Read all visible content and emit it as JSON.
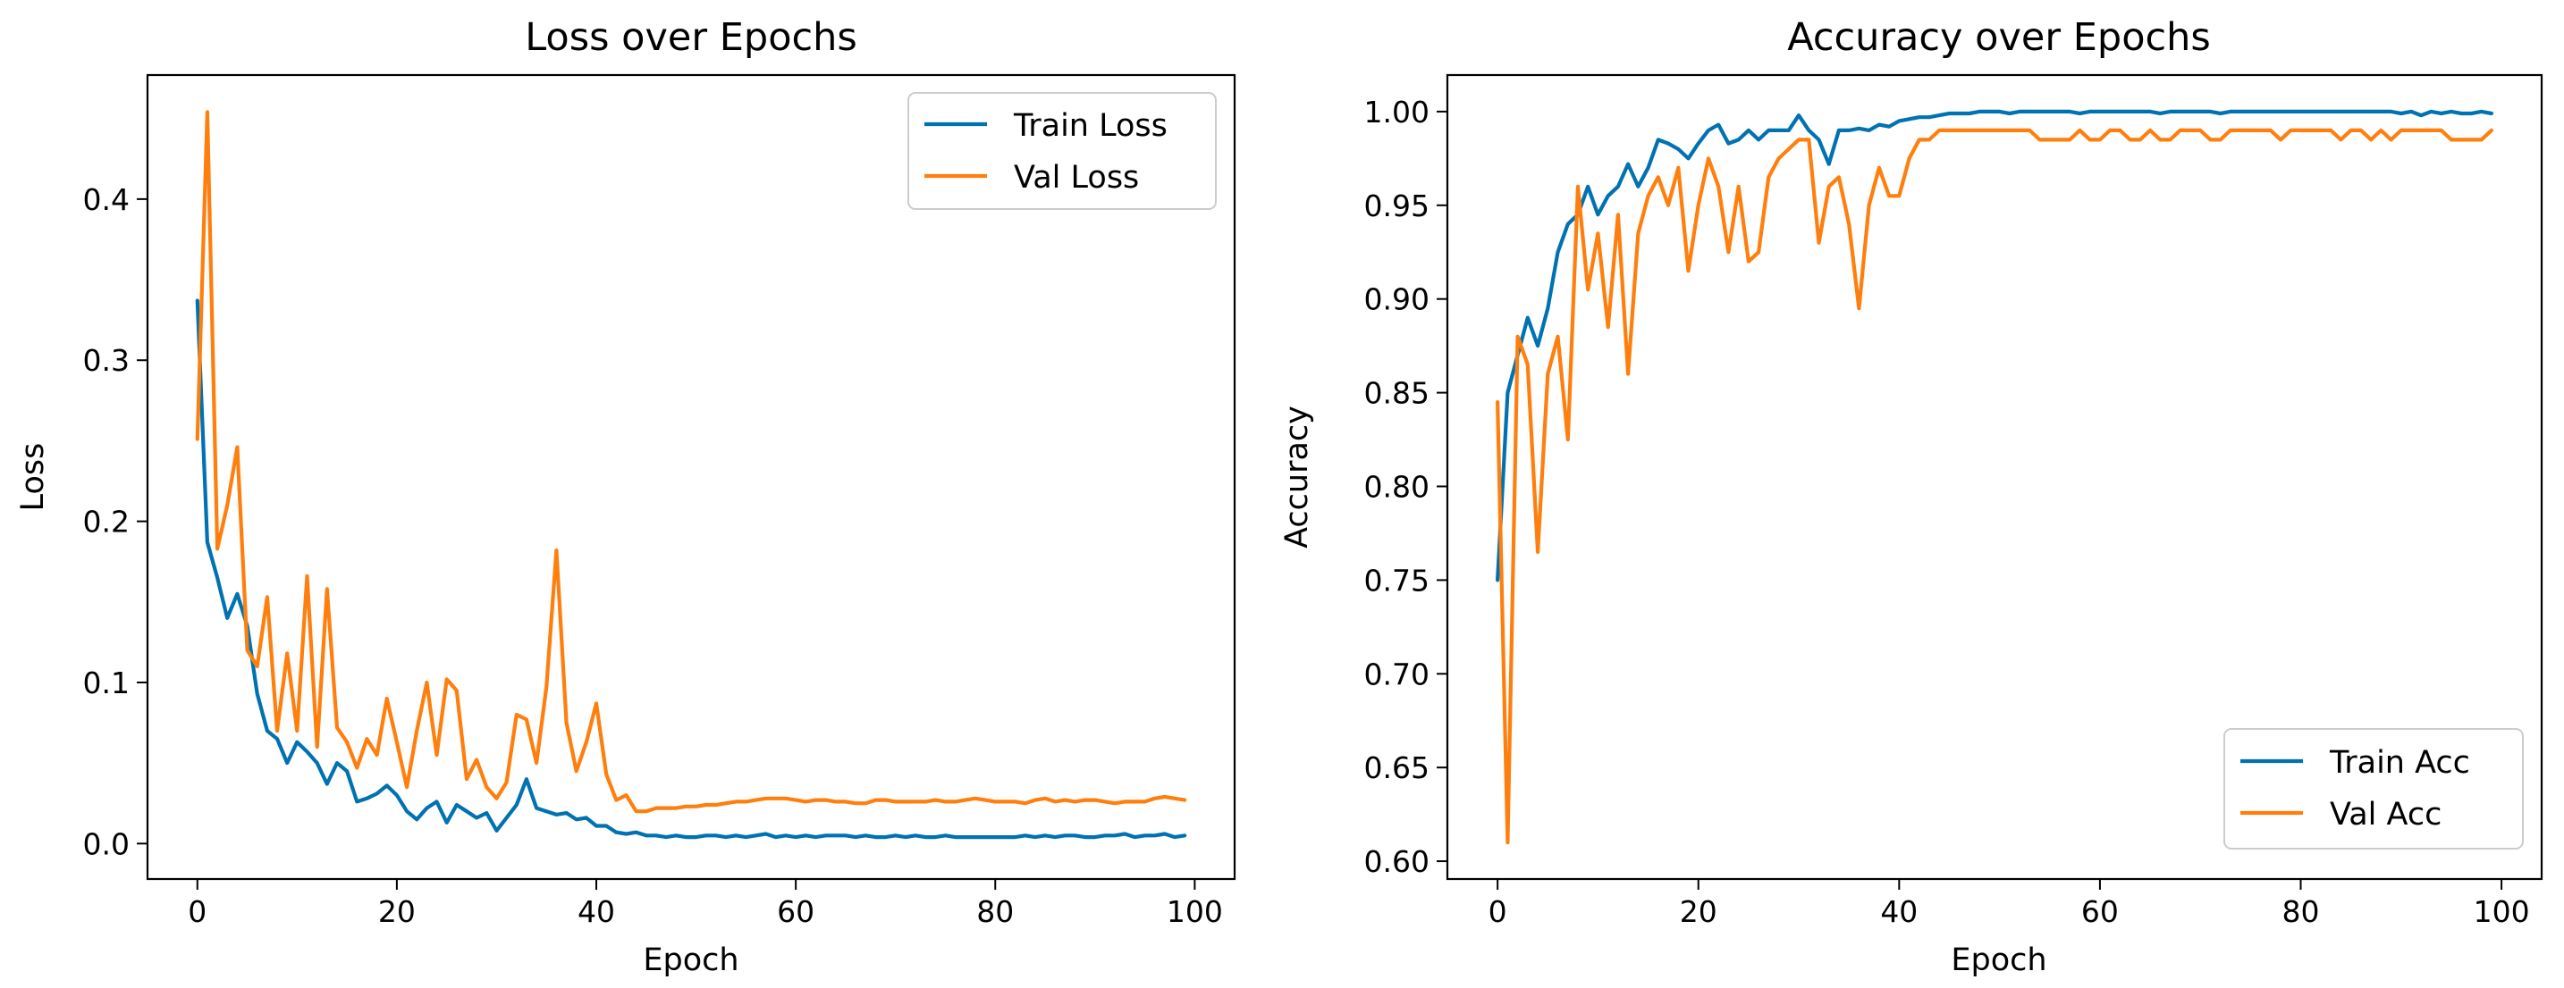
{
  "chart_data": [
    {
      "type": "line",
      "title": "Loss over Epochs",
      "xlabel": "Epoch",
      "ylabel": "Loss",
      "xlim": [
        -5,
        104
      ],
      "ylim": [
        -0.022,
        0.477
      ],
      "xticks": [
        0,
        20,
        40,
        60,
        80,
        100
      ],
      "xtick_labels": [
        "0",
        "20",
        "40",
        "60",
        "80",
        "100"
      ],
      "yticks": [
        0.0,
        0.1,
        0.2,
        0.3,
        0.4
      ],
      "ytick_labels": [
        "0.0",
        "0.1",
        "0.2",
        "0.3",
        "0.4"
      ],
      "grid": false,
      "legend_position": "top-right",
      "series": [
        {
          "name": "Train Loss",
          "color": "#0072B2",
          "values": [
            0.337,
            0.187,
            0.165,
            0.14,
            0.155,
            0.135,
            0.093,
            0.07,
            0.065,
            0.05,
            0.063,
            0.057,
            0.05,
            0.037,
            0.05,
            0.045,
            0.026,
            0.028,
            0.031,
            0.036,
            0.03,
            0.02,
            0.015,
            0.022,
            0.026,
            0.013,
            0.024,
            0.02,
            0.016,
            0.019,
            0.008,
            0.016,
            0.024,
            0.04,
            0.022,
            0.02,
            0.018,
            0.019,
            0.015,
            0.016,
            0.011,
            0.011,
            0.007,
            0.006,
            0.007,
            0.005,
            0.005,
            0.004,
            0.005,
            0.004,
            0.004,
            0.005,
            0.005,
            0.004,
            0.005,
            0.004,
            0.005,
            0.006,
            0.004,
            0.005,
            0.004,
            0.005,
            0.004,
            0.005,
            0.005,
            0.005,
            0.004,
            0.005,
            0.004,
            0.004,
            0.005,
            0.004,
            0.005,
            0.004,
            0.004,
            0.005,
            0.004,
            0.004,
            0.004,
            0.004,
            0.004,
            0.004,
            0.004,
            0.005,
            0.004,
            0.005,
            0.004,
            0.005,
            0.005,
            0.004,
            0.004,
            0.005,
            0.005,
            0.006,
            0.004,
            0.005,
            0.005,
            0.006,
            0.004,
            0.005
          ]
        },
        {
          "name": "Val Loss",
          "color": "#FF7F0E",
          "values": [
            0.251,
            0.454,
            0.183,
            0.21,
            0.246,
            0.12,
            0.11,
            0.153,
            0.07,
            0.118,
            0.07,
            0.166,
            0.06,
            0.158,
            0.072,
            0.063,
            0.047,
            0.065,
            0.055,
            0.09,
            0.063,
            0.035,
            0.07,
            0.1,
            0.055,
            0.102,
            0.095,
            0.04,
            0.052,
            0.035,
            0.028,
            0.038,
            0.08,
            0.077,
            0.05,
            0.097,
            0.182,
            0.075,
            0.045,
            0.063,
            0.087,
            0.043,
            0.027,
            0.03,
            0.02,
            0.02,
            0.022,
            0.022,
            0.022,
            0.023,
            0.023,
            0.024,
            0.024,
            0.025,
            0.026,
            0.026,
            0.027,
            0.028,
            0.028,
            0.028,
            0.027,
            0.026,
            0.027,
            0.027,
            0.026,
            0.026,
            0.025,
            0.025,
            0.027,
            0.027,
            0.026,
            0.026,
            0.026,
            0.026,
            0.027,
            0.026,
            0.026,
            0.027,
            0.028,
            0.027,
            0.026,
            0.026,
            0.026,
            0.025,
            0.027,
            0.028,
            0.026,
            0.027,
            0.026,
            0.027,
            0.027,
            0.026,
            0.025,
            0.026,
            0.026,
            0.026,
            0.028,
            0.029,
            0.028,
            0.027
          ]
        }
      ]
    },
    {
      "type": "line",
      "title": "Accuracy over Epochs",
      "xlabel": "Epoch",
      "ylabel": "Accuracy",
      "xlim": [
        -5,
        104
      ],
      "ylim": [
        0.5905,
        1.0195
      ],
      "xticks": [
        0,
        20,
        40,
        60,
        80,
        100
      ],
      "xtick_labels": [
        "0",
        "20",
        "40",
        "60",
        "80",
        "100"
      ],
      "yticks": [
        0.6,
        0.65,
        0.7,
        0.75,
        0.8,
        0.85,
        0.9,
        0.95,
        1.0
      ],
      "ytick_labels": [
        "0.60",
        "0.65",
        "0.70",
        "0.75",
        "0.80",
        "0.85",
        "0.90",
        "0.95",
        "1.00"
      ],
      "grid": false,
      "legend_position": "bottom-right",
      "series": [
        {
          "name": "Train Acc",
          "color": "#0072B2",
          "values": [
            0.75,
            0.85,
            0.87,
            0.89,
            0.875,
            0.895,
            0.925,
            0.94,
            0.945,
            0.96,
            0.945,
            0.955,
            0.96,
            0.972,
            0.96,
            0.97,
            0.985,
            0.983,
            0.98,
            0.975,
            0.983,
            0.99,
            0.993,
            0.983,
            0.985,
            0.99,
            0.985,
            0.99,
            0.99,
            0.99,
            0.998,
            0.99,
            0.985,
            0.972,
            0.99,
            0.99,
            0.991,
            0.99,
            0.993,
            0.992,
            0.995,
            0.996,
            0.997,
            0.997,
            0.998,
            0.999,
            0.999,
            0.999,
            1.0,
            1.0,
            1.0,
            0.999,
            1.0,
            1.0,
            1.0,
            1.0,
            1.0,
            1.0,
            0.999,
            1.0,
            1.0,
            1.0,
            1.0,
            1.0,
            1.0,
            1.0,
            0.999,
            1.0,
            1.0,
            1.0,
            1.0,
            1.0,
            0.999,
            1.0,
            1.0,
            1.0,
            1.0,
            1.0,
            1.0,
            1.0,
            1.0,
            1.0,
            1.0,
            1.0,
            1.0,
            1.0,
            1.0,
            1.0,
            1.0,
            1.0,
            0.999,
            1.0,
            0.998,
            1.0,
            0.999,
            1.0,
            0.999,
            0.999,
            1.0,
            0.999
          ]
        },
        {
          "name": "Val Acc",
          "color": "#FF7F0E",
          "values": [
            0.845,
            0.61,
            0.88,
            0.865,
            0.765,
            0.86,
            0.88,
            0.825,
            0.96,
            0.905,
            0.935,
            0.885,
            0.945,
            0.86,
            0.935,
            0.955,
            0.965,
            0.95,
            0.97,
            0.915,
            0.95,
            0.975,
            0.96,
            0.925,
            0.96,
            0.92,
            0.925,
            0.965,
            0.975,
            0.98,
            0.985,
            0.985,
            0.93,
            0.96,
            0.965,
            0.94,
            0.895,
            0.95,
            0.97,
            0.955,
            0.955,
            0.975,
            0.985,
            0.985,
            0.99,
            0.99,
            0.99,
            0.99,
            0.99,
            0.99,
            0.99,
            0.99,
            0.99,
            0.99,
            0.985,
            0.985,
            0.985,
            0.985,
            0.99,
            0.985,
            0.985,
            0.99,
            0.99,
            0.985,
            0.985,
            0.99,
            0.985,
            0.985,
            0.99,
            0.99,
            0.99,
            0.985,
            0.985,
            0.99,
            0.99,
            0.99,
            0.99,
            0.99,
            0.985,
            0.99,
            0.99,
            0.99,
            0.99,
            0.99,
            0.985,
            0.99,
            0.99,
            0.985,
            0.99,
            0.985,
            0.99,
            0.99,
            0.99,
            0.99,
            0.99,
            0.985,
            0.985,
            0.985,
            0.985,
            0.99
          ]
        }
      ]
    }
  ]
}
